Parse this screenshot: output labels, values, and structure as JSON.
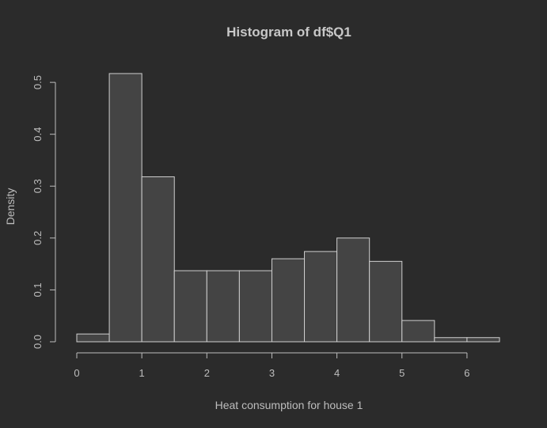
{
  "chart_data": {
    "type": "bar",
    "title": "Histogram of df$Q1",
    "xlabel": "Heat consumption for house 1",
    "ylabel": "Density",
    "xlim": [
      0,
      6.5
    ],
    "ylim": [
      0,
      0.52
    ],
    "x_ticks": [
      0,
      1,
      2,
      3,
      4,
      5,
      6
    ],
    "y_ticks": [
      0.0,
      0.1,
      0.2,
      0.3,
      0.4,
      0.5
    ],
    "y_tick_labels": [
      "0.0",
      "0.1",
      "0.2",
      "0.3",
      "0.4",
      "0.5"
    ],
    "bin_edges": [
      0,
      0.5,
      1,
      1.5,
      2,
      2.5,
      3,
      3.5,
      4,
      4.5,
      5,
      5.5,
      6,
      6.5
    ],
    "values": [
      0.015,
      0.517,
      0.318,
      0.137,
      0.137,
      0.137,
      0.16,
      0.174,
      0.2,
      0.155,
      0.041,
      0.008,
      0.008
    ],
    "grid": false,
    "legend": "none",
    "colors": {
      "background": "#2b2b2b",
      "bar_fill": "#444444",
      "bar_stroke": "#cfcfcf",
      "text": "#bdbdbd"
    }
  }
}
